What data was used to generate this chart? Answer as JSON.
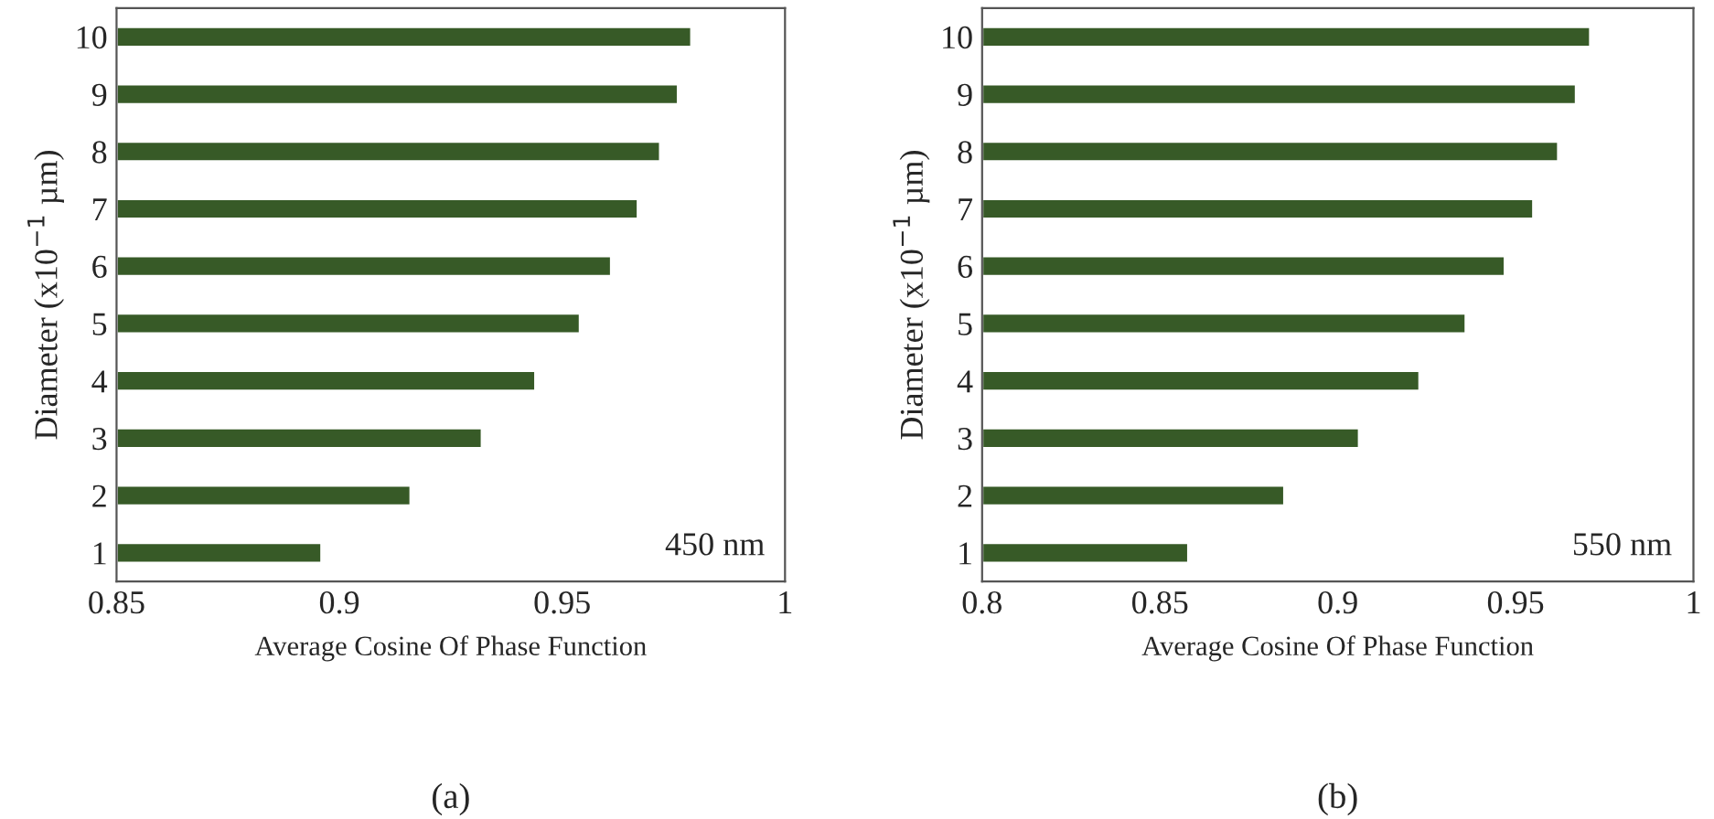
{
  "chart_data": [
    {
      "type": "bar",
      "orientation": "horizontal",
      "xlabel": "Average Cosine Of Phase Function",
      "ylabel": "Diameter (x10$^{−1}$ µm)",
      "categories": [
        "10",
        "9",
        "8",
        "7",
        "6",
        "5",
        "4",
        "3",
        "2",
        "1"
      ],
      "values": [
        0.979,
        0.976,
        0.972,
        0.967,
        0.961,
        0.954,
        0.944,
        0.932,
        0.916,
        0.896
      ],
      "color": "#375a27",
      "xlim": [
        0.85,
        1
      ],
      "xticks": [
        0.85,
        0.9,
        0.95,
        1
      ],
      "grid": false,
      "legend": false,
      "annotations": [
        "450 nm",
        "(a)"
      ]
    },
    {
      "type": "bar",
      "orientation": "horizontal",
      "xlabel": "Average Cosine Of Phase Function",
      "ylabel": "Diameter (x10$^{−1}$ µm)",
      "categories": [
        "10",
        "9",
        "8",
        "7",
        "6",
        "5",
        "4",
        "3",
        "2",
        "1"
      ],
      "values": [
        0.971,
        0.967,
        0.962,
        0.955,
        0.947,
        0.936,
        0.923,
        0.906,
        0.885,
        0.858
      ],
      "color": "#375a27",
      "xlim": [
        0.8,
        1
      ],
      "xticks": [
        0.8,
        0.85,
        0.9,
        0.95,
        1
      ],
      "grid": false,
      "legend": false,
      "annotations": [
        "550 nm",
        "(b)"
      ]
    }
  ]
}
